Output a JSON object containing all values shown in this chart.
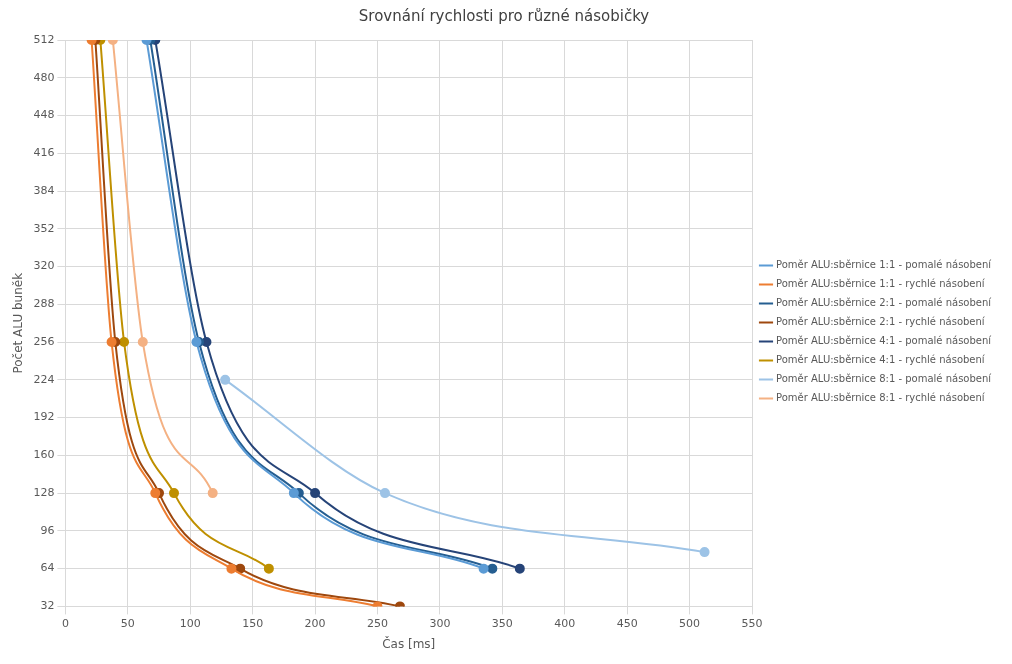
{
  "chart_data": {
    "type": "line",
    "title": "Srovnání rychlosti pro různé násobičky",
    "xlabel": "Čas [ms]",
    "ylabel": "Počet ALU buněk",
    "xlim": [
      0,
      550
    ],
    "xticks": [
      0,
      50,
      100,
      150,
      200,
      250,
      300,
      350,
      400,
      450,
      500,
      550
    ],
    "ylim": [
      32,
      512
    ],
    "yticks": [
      32,
      64,
      96,
      128,
      160,
      192,
      224,
      256,
      288,
      320,
      352,
      384,
      416,
      448,
      480,
      512
    ],
    "grid": true,
    "legend": "right",
    "marker": "circle",
    "line_style": "solid",
    "series": [
      {
        "name": "Poměr ALU:sběrnice 1:1 - pomalé násobení",
        "color": "#5b9bd5",
        "x": [
          65,
          105,
          183,
          335
        ],
        "values": [
          512,
          256,
          128,
          64
        ]
      },
      {
        "name": "Poměr ALU:sběrnice 1:1 - rychlé násobení",
        "color": "#ed7d31",
        "x": [
          21,
          37,
          72,
          133,
          250
        ],
        "values": [
          512,
          256,
          128,
          64,
          32
        ]
      },
      {
        "name": "Poměr ALU:sběrnice 2:1 - pomalé násobení",
        "color": "#255e91",
        "x": [
          68,
          107,
          187,
          342
        ],
        "values": [
          512,
          256,
          128,
          64
        ]
      },
      {
        "name": "Poměr ALU:sběrnice 2:1 - rychlé násobení",
        "color": "#9e480e",
        "x": [
          24,
          40,
          75,
          140,
          268
        ],
        "values": [
          512,
          256,
          128,
          64,
          32
        ]
      },
      {
        "name": "Poměr ALU:sběrnice 4:1 - pomalé násobení",
        "color": "#264478",
        "x": [
          72,
          113,
          200,
          364
        ],
        "values": [
          512,
          256,
          128,
          64
        ]
      },
      {
        "name": "Poměr ALU:sběrnice 4:1 - rychlé násobení",
        "color": "#bf9000",
        "x": [
          28,
          47,
          87,
          163
        ],
        "values": [
          512,
          256,
          128,
          64
        ]
      },
      {
        "name": "Poměr ALU:sběrnice 8:1 - pomalé násobení",
        "color": "#9dc3e6",
        "x": [
          128,
          256,
          512
        ],
        "values": [
          224,
          128,
          78
        ]
      },
      {
        "name": "Poměr ALU:sběrnice 8:1 - rychlé násobení",
        "color": "#f4b183",
        "x": [
          38,
          62,
          118
        ],
        "values": [
          512,
          256,
          128
        ]
      }
    ]
  }
}
